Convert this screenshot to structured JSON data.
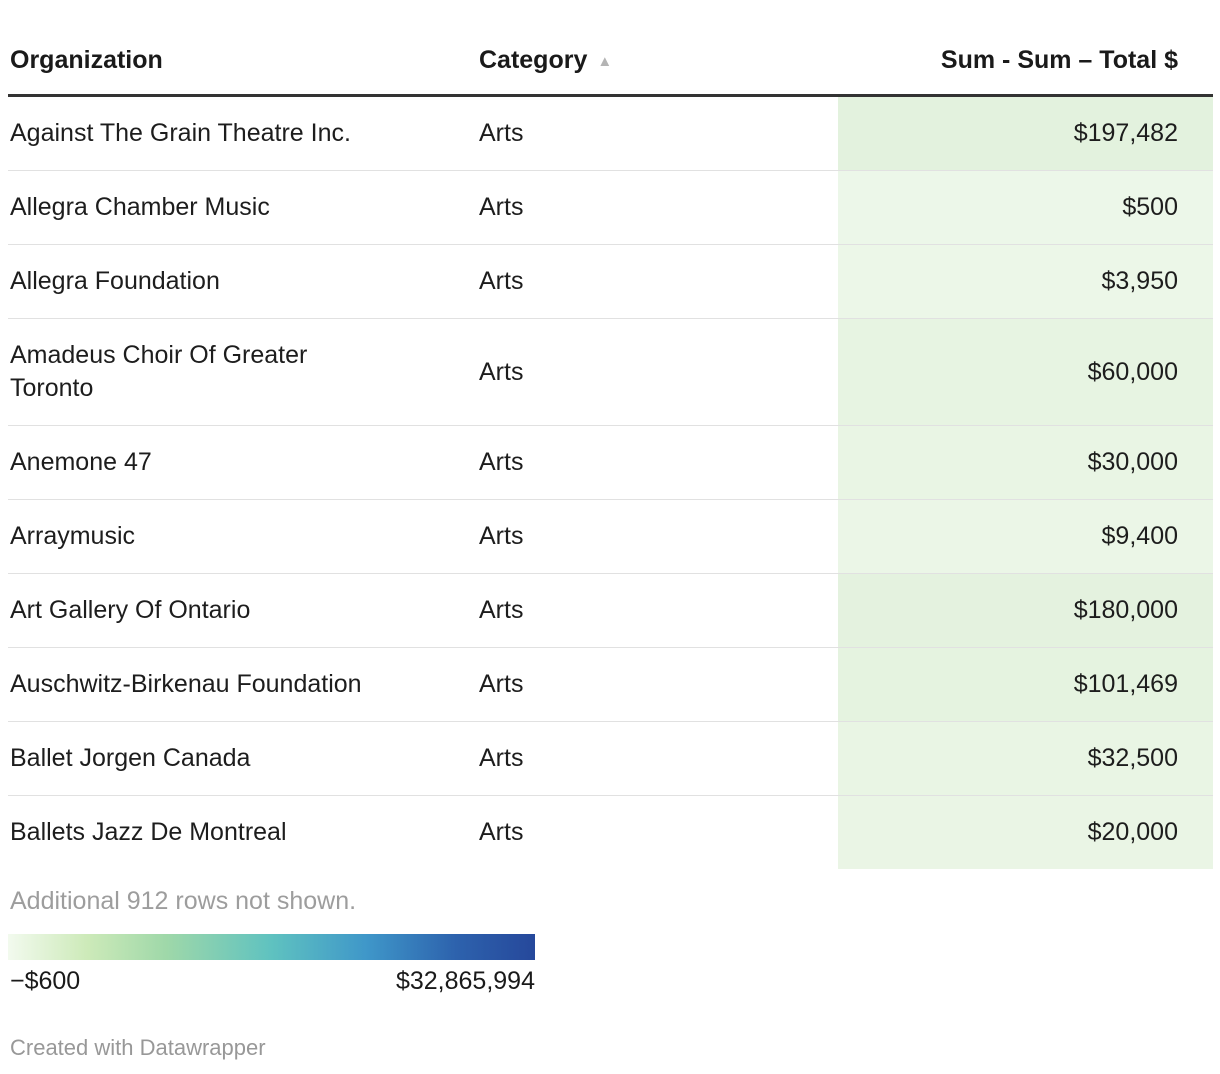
{
  "chart_data": {
    "type": "table",
    "columns": [
      "Organization",
      "Category",
      "Sum - Sum – Total $"
    ],
    "rows": [
      [
        "Against The Grain Theatre Inc.",
        "Arts",
        197482
      ],
      [
        "Allegra Chamber Music",
        "Arts",
        500
      ],
      [
        "Allegra Foundation",
        "Arts",
        3950
      ],
      [
        "Amadeus Choir Of Greater Toronto",
        "Arts",
        60000
      ],
      [
        "Anemone 47",
        "Arts",
        30000
      ],
      [
        "Arraymusic",
        "Arts",
        9400
      ],
      [
        "Art Gallery Of Ontario",
        "Arts",
        180000
      ],
      [
        "Auschwitz-Birkenau Foundation",
        "Arts",
        101469
      ],
      [
        "Ballet Jorgen Canada",
        "Arts",
        32500
      ],
      [
        "Ballets Jazz De Montreal",
        "Arts",
        20000
      ]
    ],
    "sort": {
      "column": "Category",
      "direction": "ascending"
    },
    "note": "Additional 912 rows not shown.",
    "color_scale": {
      "min": -600,
      "max": 32865994,
      "min_label": "−$600",
      "max_label": "$32,865,994"
    }
  },
  "header": {
    "col_organization": "Organization",
    "col_category": "Category",
    "col_total": "Sum - Sum – Total $",
    "sort_icon": "▲"
  },
  "rows": [
    {
      "organization": "Against The Grain Theatre Inc.",
      "category": "Arts",
      "total": "$197,482",
      "cell_bg": "#e3f2de"
    },
    {
      "organization": "Allegra Chamber Music",
      "category": "Arts",
      "total": "$500",
      "cell_bg": "#ecf7e9"
    },
    {
      "organization": "Allegra Foundation",
      "category": "Arts",
      "total": "$3,950",
      "cell_bg": "#ecf7e8"
    },
    {
      "organization": "Amadeus Choir Of Greater Toronto",
      "category": "Arts",
      "total": "$60,000",
      "cell_bg": "#e7f4e2"
    },
    {
      "organization": "Anemone 47",
      "category": "Arts",
      "total": "$30,000",
      "cell_bg": "#e9f5e4"
    },
    {
      "organization": "Arraymusic",
      "category": "Arts",
      "total": "$9,400",
      "cell_bg": "#ebf6e7"
    },
    {
      "organization": "Art Gallery Of Ontario",
      "category": "Arts",
      "total": "$180,000",
      "cell_bg": "#e4f2df"
    },
    {
      "organization": "Auschwitz-Birkenau Foundation",
      "category": "Arts",
      "total": "$101,469",
      "cell_bg": "#e5f3e0"
    },
    {
      "organization": "Ballet Jorgen Canada",
      "category": "Arts",
      "total": "$32,500",
      "cell_bg": "#e9f5e4"
    },
    {
      "organization": "Ballets Jazz De Montreal",
      "category": "Arts",
      "total": "$20,000",
      "cell_bg": "#eaf5e5"
    }
  ],
  "footer": {
    "note": "Additional 912 rows not shown.",
    "attribution": "Created with Datawrapper"
  },
  "legend": {
    "min_label": "−$600",
    "max_label": "$32,865,994",
    "gradient_stops": [
      "#f2faee 0%",
      "#cdeab9 15%",
      "#9fd8a9 30%",
      "#5fc2c0 50%",
      "#3f97c9 68%",
      "#2d62ad 85%",
      "#26489b 100%"
    ]
  },
  "colors": {
    "header_border": "#333333",
    "row_divider": "#e1e1e1",
    "text": "#1d1d1d",
    "muted_text": "#9d9d9d",
    "sort_icon": "#b4b4b4"
  }
}
